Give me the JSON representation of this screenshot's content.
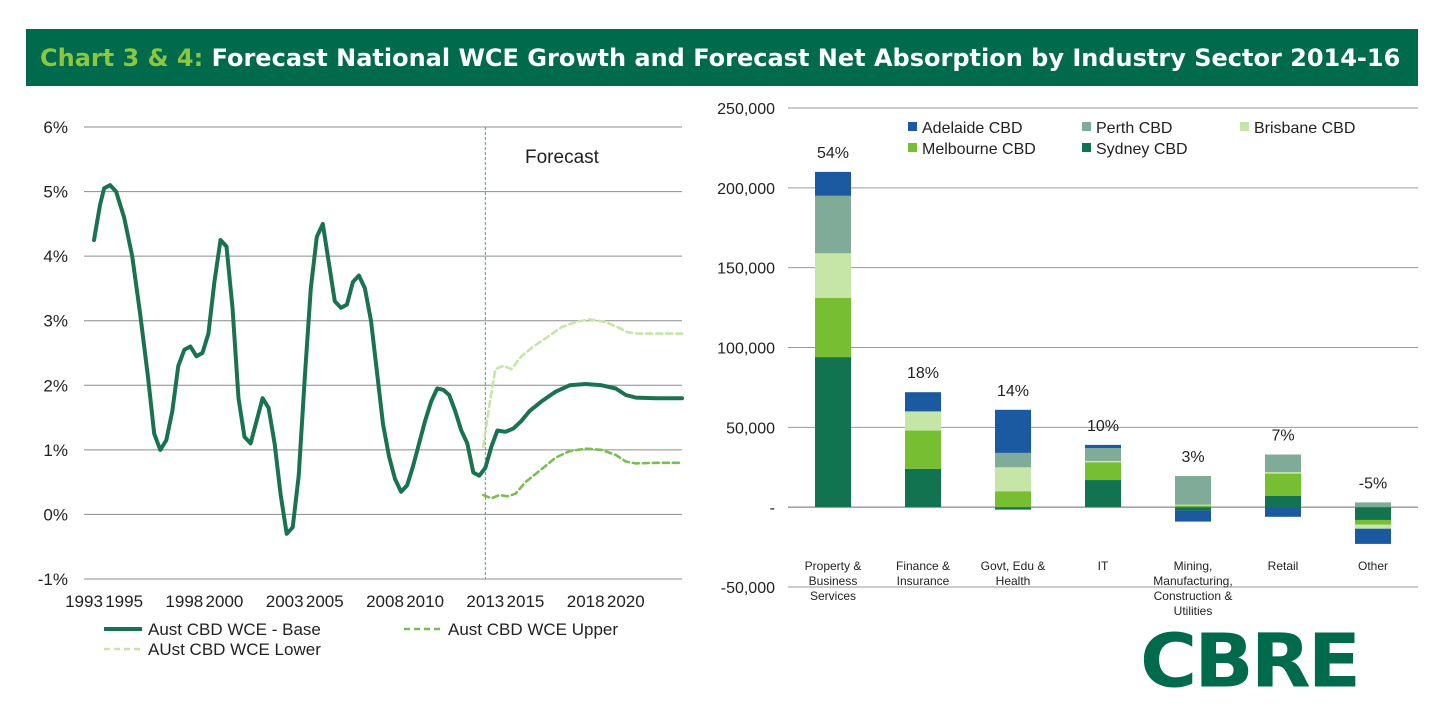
{
  "header": {
    "prefix": "Chart 3 & 4:",
    "title": "Forecast National WCE Growth and Forecast Net Absorption by Industry Sector 2014-16"
  },
  "colors": {
    "banner": "#006a4d",
    "accent": "#8dc63f",
    "base": "#1a7350",
    "upper": "#78be50",
    "lower": "#c6e6a8",
    "adelaide": "#1b5aa0",
    "perth": "#80ab98",
    "brisbane": "#c6e6a8",
    "melbourne": "#78be32",
    "sydney": "#127350"
  },
  "logo": {
    "text": "CBRE"
  },
  "chart_data": [
    {
      "type": "line",
      "title": "",
      "annotation": "Forecast",
      "forecast_start": 2013,
      "xlim": [
        1993,
        2022.8
      ],
      "ylim": [
        -1,
        6
      ],
      "x_ticks": [
        1993,
        1995,
        1998,
        2000,
        2003,
        2005,
        2008,
        2010,
        2013,
        2015,
        2018,
        2020
      ],
      "y_ticks": [
        "-1%",
        "0%",
        "1%",
        "2%",
        "3%",
        "4%",
        "5%",
        "6%"
      ],
      "grid": true,
      "legend_position": "bottom",
      "series": [
        {
          "name": "Aust CBD WCE - Base",
          "style": "solid",
          "points": [
            [
              1993.5,
              4.25
            ],
            [
              1993.8,
              4.8
            ],
            [
              1994.0,
              5.05
            ],
            [
              1994.3,
              5.1
            ],
            [
              1994.6,
              5.0
            ],
            [
              1995.0,
              4.6
            ],
            [
              1995.4,
              4.0
            ],
            [
              1995.8,
              3.1
            ],
            [
              1996.2,
              2.1
            ],
            [
              1996.5,
              1.25
            ],
            [
              1996.8,
              1.0
            ],
            [
              1997.1,
              1.15
            ],
            [
              1997.4,
              1.6
            ],
            [
              1997.7,
              2.3
            ],
            [
              1998.0,
              2.55
            ],
            [
              1998.3,
              2.6
            ],
            [
              1998.6,
              2.45
            ],
            [
              1998.9,
              2.5
            ],
            [
              1999.2,
              2.8
            ],
            [
              1999.5,
              3.6
            ],
            [
              1999.8,
              4.25
            ],
            [
              2000.1,
              4.15
            ],
            [
              2000.4,
              3.2
            ],
            [
              2000.7,
              1.8
            ],
            [
              2001.0,
              1.2
            ],
            [
              2001.3,
              1.1
            ],
            [
              2001.6,
              1.45
            ],
            [
              2001.9,
              1.8
            ],
            [
              2002.2,
              1.65
            ],
            [
              2002.5,
              1.1
            ],
            [
              2002.8,
              0.3
            ],
            [
              2003.1,
              -0.3
            ],
            [
              2003.4,
              -0.2
            ],
            [
              2003.7,
              0.6
            ],
            [
              2004.0,
              2.1
            ],
            [
              2004.3,
              3.5
            ],
            [
              2004.6,
              4.3
            ],
            [
              2004.9,
              4.5
            ],
            [
              2005.2,
              3.9
            ],
            [
              2005.5,
              3.3
            ],
            [
              2005.8,
              3.2
            ],
            [
              2006.1,
              3.25
            ],
            [
              2006.4,
              3.6
            ],
            [
              2006.7,
              3.7
            ],
            [
              2007.0,
              3.5
            ],
            [
              2007.3,
              3.0
            ],
            [
              2007.6,
              2.2
            ],
            [
              2007.9,
              1.4
            ],
            [
              2008.2,
              0.9
            ],
            [
              2008.5,
              0.55
            ],
            [
              2008.8,
              0.35
            ],
            [
              2009.1,
              0.45
            ],
            [
              2009.4,
              0.75
            ],
            [
              2009.7,
              1.1
            ],
            [
              2010.0,
              1.45
            ],
            [
              2010.3,
              1.75
            ],
            [
              2010.6,
              1.95
            ],
            [
              2010.9,
              1.93
            ],
            [
              2011.2,
              1.85
            ],
            [
              2011.5,
              1.6
            ],
            [
              2011.8,
              1.3
            ],
            [
              2012.1,
              1.1
            ],
            [
              2012.4,
              0.65
            ],
            [
              2012.7,
              0.6
            ],
            [
              2013.0,
              0.72
            ],
            [
              2013.3,
              1.05
            ],
            [
              2013.6,
              1.3
            ],
            [
              2014.0,
              1.28
            ],
            [
              2014.4,
              1.33
            ],
            [
              2014.8,
              1.45
            ],
            [
              2015.2,
              1.6
            ],
            [
              2015.8,
              1.75
            ],
            [
              2016.5,
              1.9
            ],
            [
              2017.2,
              2.0
            ],
            [
              2018.0,
              2.02
            ],
            [
              2018.8,
              2.0
            ],
            [
              2019.5,
              1.95
            ],
            [
              2020.0,
              1.85
            ],
            [
              2020.5,
              1.81
            ],
            [
              2021.5,
              1.8
            ],
            [
              2022.8,
              1.8
            ]
          ]
        },
        {
          "name": "Aust CBD WCE Upper",
          "style": "dashed",
          "points": [
            [
              2012.9,
              0.3
            ],
            [
              2013.3,
              0.25
            ],
            [
              2013.7,
              0.3
            ],
            [
              2014.1,
              0.28
            ],
            [
              2014.5,
              0.32
            ],
            [
              2015.0,
              0.5
            ],
            [
              2015.8,
              0.7
            ],
            [
              2016.5,
              0.88
            ],
            [
              2017.2,
              0.98
            ],
            [
              2018.0,
              1.02
            ],
            [
              2018.8,
              1.0
            ],
            [
              2019.5,
              0.92
            ],
            [
              2020.0,
              0.82
            ],
            [
              2020.5,
              0.79
            ],
            [
              2021.5,
              0.8
            ],
            [
              2022.8,
              0.8
            ]
          ]
        },
        {
          "name": "AUst CBD WCE Lower",
          "style": "dashed",
          "points": [
            [
              2012.9,
              1.05
            ],
            [
              2013.2,
              1.7
            ],
            [
              2013.5,
              2.25
            ],
            [
              2013.9,
              2.3
            ],
            [
              2014.3,
              2.25
            ],
            [
              2014.8,
              2.45
            ],
            [
              2015.4,
              2.6
            ],
            [
              2016.1,
              2.75
            ],
            [
              2016.8,
              2.9
            ],
            [
              2017.5,
              2.98
            ],
            [
              2018.2,
              3.02
            ],
            [
              2019.0,
              2.98
            ],
            [
              2019.6,
              2.9
            ],
            [
              2020.1,
              2.82
            ],
            [
              2020.6,
              2.8
            ],
            [
              2021.5,
              2.8
            ],
            [
              2022.8,
              2.8
            ]
          ]
        }
      ]
    },
    {
      "type": "bar",
      "stacked": true,
      "title": "",
      "ylim": [
        -50000,
        250000
      ],
      "y_ticks": [
        "-50,000",
        "-",
        "50,000",
        "100,000",
        "150,000",
        "200,000",
        "250,000"
      ],
      "categories": [
        "Property & Business Services",
        "Finance & Insurance",
        "Govt, Edu & Health",
        "IT",
        "Mining, Manufacturing, Construction & Utilities",
        "Retail",
        "Other"
      ],
      "category_lines": [
        [
          "Property &",
          "Business",
          "Services"
        ],
        [
          "Finance &",
          "Insurance"
        ],
        [
          "Govt, Edu &",
          "Health"
        ],
        [
          "IT"
        ],
        [
          "Mining,",
          "Manufacturing,",
          "Construction &",
          "Utilities"
        ],
        [
          "Retail"
        ],
        [
          "Other"
        ]
      ],
      "share_labels": [
        "54%",
        "18%",
        "14%",
        "10%",
        "3%",
        "7%",
        "-5%"
      ],
      "legend_position": "top",
      "legend_order": [
        "Adelaide CBD",
        "Perth CBD",
        "Brisbane CBD",
        "Melbourne CBD",
        "Sydney CBD"
      ],
      "series": [
        {
          "name": "Sydney CBD",
          "values": [
            94000,
            24000,
            -1500,
            17000,
            -2000,
            7000,
            -8000
          ]
        },
        {
          "name": "Melbourne CBD",
          "values": [
            37000,
            24000,
            10000,
            11000,
            1000,
            14000,
            -3000
          ]
        },
        {
          "name": "Brisbane CBD",
          "values": [
            28000,
            12000,
            15000,
            1000,
            500,
            1000,
            -2500
          ]
        },
        {
          "name": "Perth CBD",
          "values": [
            36000,
            0,
            9000,
            8000,
            18000,
            11000,
            3000
          ]
        },
        {
          "name": "Adelaide CBD",
          "values": [
            15000,
            12000,
            27000,
            2000,
            -7000,
            -6000,
            -9500
          ]
        }
      ]
    }
  ]
}
